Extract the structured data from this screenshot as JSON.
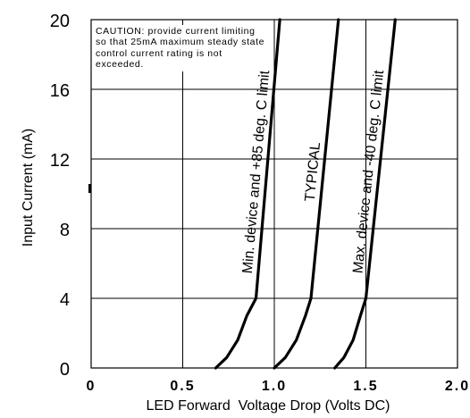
{
  "chart_data": {
    "type": "line",
    "xlabel": "LED Forward  Voltage Drop (Volts DC)",
    "ylabel": "Input Current (mA)",
    "xlim": [
      0,
      2.0
    ],
    "ylim": [
      0,
      20
    ],
    "x_ticks": [
      "0",
      "0.5",
      "1.0",
      "1.5",
      "2.0"
    ],
    "x_tick_values": [
      0,
      0.5,
      1.0,
      1.5,
      2.0
    ],
    "y_ticks": [
      "0",
      "4",
      "8",
      "12",
      "16",
      "20"
    ],
    "y_tick_values": [
      0,
      4,
      8,
      12,
      16,
      20
    ],
    "grid": true,
    "annotation": "CAUTION: provide current limiting so that 25mA maximum steady state control current rating is not exceeded.",
    "series": [
      {
        "label": "Min. device and +85 deg. C limit",
        "points": [
          [
            0.68,
            0
          ],
          [
            0.74,
            0.6
          ],
          [
            0.8,
            1.6
          ],
          [
            0.85,
            3.0
          ],
          [
            0.9,
            4.0
          ],
          [
            1.03,
            20
          ]
        ]
      },
      {
        "label": "TYPICAL",
        "points": [
          [
            1.0,
            0
          ],
          [
            1.06,
            0.6
          ],
          [
            1.12,
            1.6
          ],
          [
            1.17,
            3.0
          ],
          [
            1.2,
            4.0
          ],
          [
            1.35,
            20
          ]
        ]
      },
      {
        "label": "Max. device and -40 deg. C limit",
        "points": [
          [
            1.33,
            0
          ],
          [
            1.38,
            0.6
          ],
          [
            1.43,
            1.6
          ],
          [
            1.47,
            3.0
          ],
          [
            1.5,
            4.0
          ],
          [
            1.66,
            20
          ]
        ]
      }
    ]
  },
  "colors": {
    "curve": "#000000",
    "grid": "#000000",
    "background": "#ffffff"
  }
}
